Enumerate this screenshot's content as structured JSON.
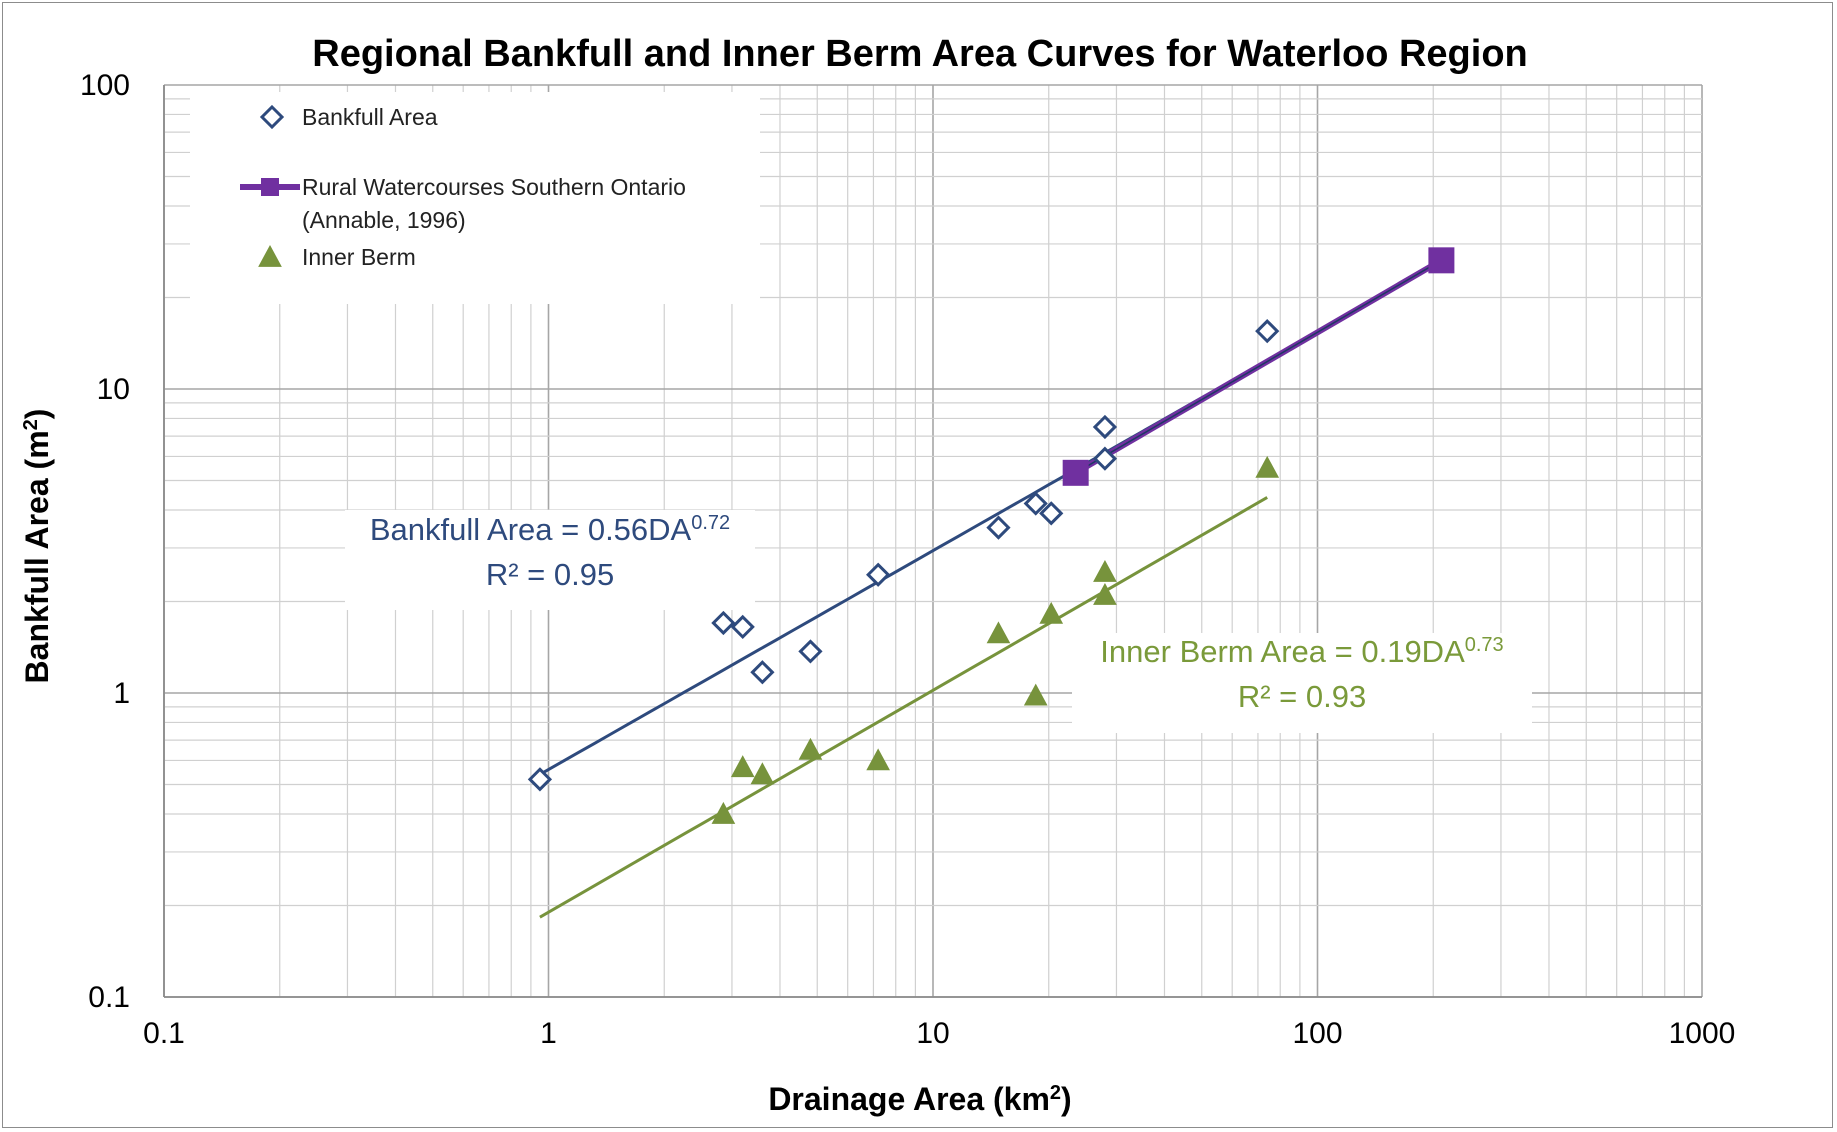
{
  "chart_data": {
    "type": "scatter",
    "title": "Regional Bankfull and Inner Berm Area Curves for Waterloo Region",
    "xlabel": "Drainage Area (km",
    "xlabel_sup": "2",
    "xlabel_end": ")",
    "ylabel": "Bankfull Area (m",
    "ylabel_sup": "2",
    "ylabel_end": ")",
    "x_scale": "log",
    "y_scale": "log",
    "xlim": [
      0.1,
      1000
    ],
    "ylim": [
      0.1,
      100
    ],
    "x_ticks": [
      "0.1",
      "1",
      "10",
      "100",
      "1000"
    ],
    "y_ticks": [
      "0.1",
      "1",
      "10",
      "100"
    ],
    "grid": true,
    "legend_position": "top-left",
    "legend": [
      {
        "label": "Bankfull Area",
        "marker": "diamond-open"
      },
      {
        "label": "Rural Watercourses Southern Ontario",
        "label2": "(Annable, 1996)",
        "marker": "square-line"
      },
      {
        "label": "Inner Berm",
        "marker": "triangle"
      }
    ],
    "series": [
      {
        "name": "Bankfull Area",
        "color": "#2e4a7d",
        "marker": "diamond-open",
        "x": [
          0.95,
          2.85,
          3.2,
          3.6,
          4.8,
          7.2,
          14.8,
          18.5,
          20.3,
          28,
          28,
          74
        ],
        "y": [
          0.52,
          1.7,
          1.65,
          1.17,
          1.37,
          2.45,
          3.5,
          4.2,
          3.9,
          7.5,
          5.9,
          15.5
        ]
      },
      {
        "name": "Rural Watercourses Southern Ontario (Annable, 1996)",
        "color": "#7030a0",
        "marker": "square-line",
        "x": [
          23.5,
          210
        ],
        "y": [
          5.3,
          26.5
        ]
      },
      {
        "name": "Inner Berm",
        "color": "#77933c",
        "marker": "triangle",
        "x": [
          2.85,
          3.2,
          3.6,
          4.8,
          7.2,
          14.8,
          18.5,
          20.3,
          28,
          28,
          74
        ],
        "y": [
          0.4,
          0.57,
          0.54,
          0.65,
          0.6,
          1.57,
          0.98,
          1.82,
          2.5,
          2.1,
          5.5
        ]
      }
    ],
    "trendlines": [
      {
        "name": "Bankfull Area trend",
        "color": "#2e4a7d",
        "coef": 0.56,
        "exp": 0.72,
        "x_range": [
          0.95,
          74
        ]
      },
      {
        "name": "Inner Berm trend",
        "color": "#77933c",
        "coef": 0.19,
        "exp": 0.73,
        "x_range": [
          0.95,
          74
        ]
      }
    ],
    "annotations": [
      {
        "line1": "Bankfull Area = 0.56DA",
        "sup": "0.72",
        "line2": "R² = 0.95",
        "color": "#2e4a7d"
      },
      {
        "line1": "Inner Berm Area = 0.19DA",
        "sup": "0.73",
        "line2": "R² = 0.93",
        "color": "#77933c"
      }
    ]
  }
}
